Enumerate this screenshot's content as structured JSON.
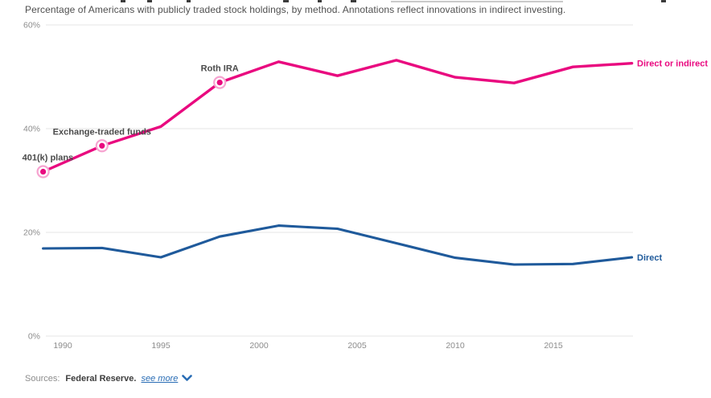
{
  "subtitle": "Percentage of Americans with publicly traded stock holdings, by method. Annotations reflect innovations in indirect investing.",
  "footer": {
    "sources_label": "Sources:",
    "source_name": "Federal Reserve.",
    "see_more_label": "see more",
    "see_more_icon": "chevron-down-icon"
  },
  "colors": {
    "indirect_line": "#e9097f",
    "indirect_halo": "#f6a3d0",
    "direct_line": "#1f5a9b",
    "grid": "#e4e4e4",
    "axis_text": "#8c8c8c",
    "annotation_text": "#4a4a4a",
    "link": "#2a6db5"
  },
  "chart_data": {
    "type": "line",
    "x": [
      1989,
      1992,
      1995,
      1998,
      2001,
      2004,
      2007,
      2010,
      2013,
      2016,
      2019
    ],
    "series": [
      {
        "name": "Direct or indirect",
        "color_key": "indirect_line",
        "values": [
          31.7,
          36.7,
          40.4,
          48.9,
          52.9,
          50.2,
          53.2,
          49.9,
          48.8,
          51.9,
          52.6
        ]
      },
      {
        "name": "Direct",
        "color_key": "direct_line",
        "values": [
          16.9,
          17.0,
          15.2,
          19.2,
          21.3,
          20.7,
          17.9,
          15.1,
          13.8,
          13.9,
          15.2
        ]
      }
    ],
    "annotations": [
      {
        "label": "401(k) plans",
        "year": 1989,
        "series": "Direct or indirect",
        "align": "left"
      },
      {
        "label": "Exchange-traded funds",
        "year": 1992,
        "series": "Direct or indirect",
        "align": "center"
      },
      {
        "label": "Roth IRA",
        "year": 1998,
        "series": "Direct or indirect",
        "align": "center"
      }
    ],
    "y_ticks": [
      {
        "value": 0,
        "label": "0%"
      },
      {
        "value": 20,
        "label": "20%"
      },
      {
        "value": 40,
        "label": "40%"
      },
      {
        "value": 60,
        "label": "60%"
      }
    ],
    "x_ticks": [
      1990,
      1995,
      2000,
      2005,
      2010,
      2015
    ],
    "ylim": [
      0,
      60
    ],
    "xlim": [
      1989,
      2019
    ],
    "grid": true,
    "legend_position": "right-end-labels"
  }
}
